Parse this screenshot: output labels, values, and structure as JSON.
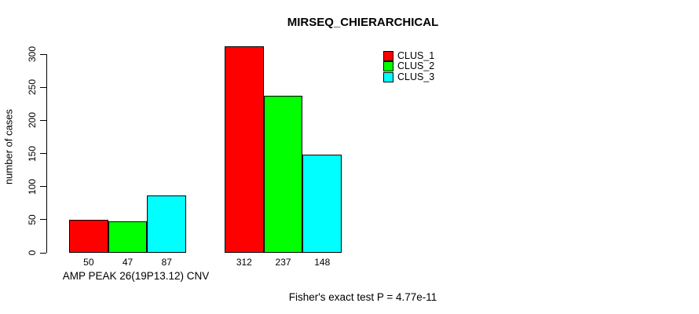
{
  "chart_data": {
    "type": "bar",
    "title": "MIRSEQ_CHIERARCHICAL",
    "ylabel": "number of cases",
    "xlabel": "",
    "ylim": [
      0,
      300
    ],
    "yticks": [
      0,
      50,
      100,
      150,
      200,
      250,
      300
    ],
    "grid": false,
    "legend_position": "top-right",
    "categories": [
      "AMP PEAK 26(19P13.12) CNV",
      ""
    ],
    "series": [
      {
        "name": "CLUS_1",
        "color": "#ff0000",
        "values": [
          50,
          312
        ]
      },
      {
        "name": "CLUS_2",
        "color": "#00ff00",
        "values": [
          47,
          237
        ]
      },
      {
        "name": "CLUS_3",
        "color": "#00ffff",
        "values": [
          87,
          148
        ]
      }
    ],
    "bar_value_labels": [
      [
        "50",
        "47",
        "87"
      ],
      [
        "312",
        "237",
        "148"
      ]
    ],
    "footnote": "Fisher's exact test P = 4.77e-11"
  }
}
